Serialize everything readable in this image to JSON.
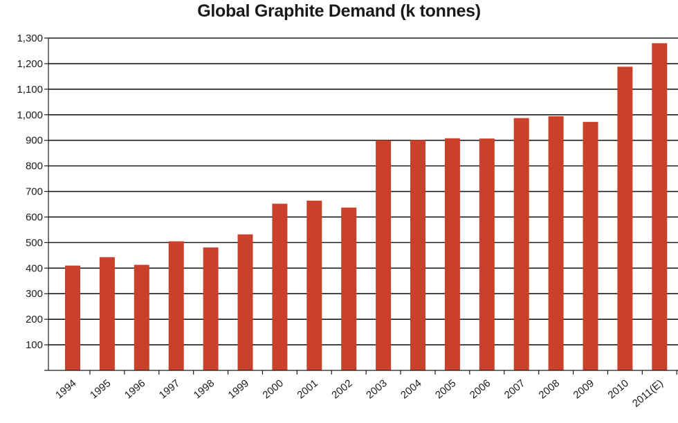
{
  "chart_data": {
    "type": "bar",
    "title": "Global Graphite Demand (k tonnes)",
    "xlabel": "",
    "ylabel": "",
    "categories": [
      "1994",
      "1995",
      "1996",
      "1997",
      "1998",
      "1999",
      "2000",
      "2001",
      "2002",
      "2003",
      "2004",
      "2005",
      "2006",
      "2007",
      "2008",
      "2009",
      "2010",
      "2011(E)"
    ],
    "values": [
      410,
      443,
      413,
      505,
      481,
      532,
      652,
      664,
      637,
      900,
      901,
      908,
      907,
      987,
      994,
      972,
      1188,
      1280
    ],
    "ylim": [
      0,
      1300
    ],
    "yticks": [
      100,
      200,
      300,
      400,
      500,
      600,
      700,
      800,
      900,
      1000,
      1100,
      1200,
      1300
    ],
    "ytick_labels": [
      "100",
      "200",
      "300",
      "400",
      "500",
      "600",
      "700",
      "800",
      "900",
      "1,000",
      "1,100",
      "1,200",
      "1,300"
    ],
    "grid": true,
    "bar_color": "#c9412b",
    "gridline_color": "#1a1a1a"
  }
}
